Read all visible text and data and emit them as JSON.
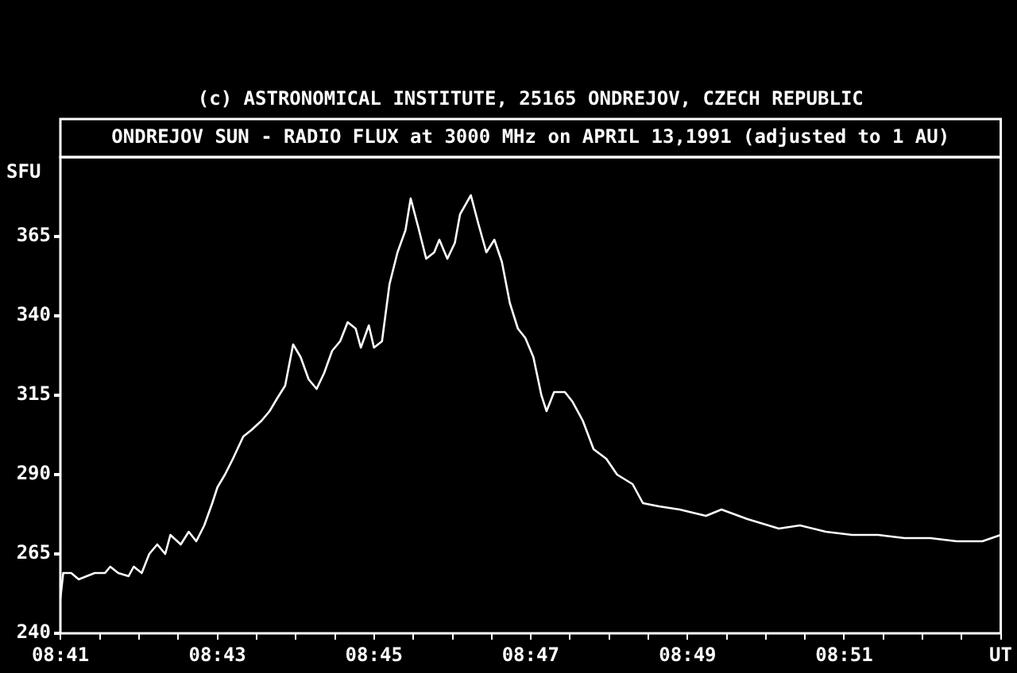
{
  "chart_data": {
    "type": "line",
    "title": "ONDREJOV SUN - RADIO FLUX at 3000 MHz on APRIL 13,1991 (adjusted to 1 AU)",
    "annotations": [
      "(c) ASTRONOMICAL INSTITUTE, 25165 ONDREJOV, CZECH REPUBLIC"
    ],
    "ylabel": "SFU",
    "x": [
      8.6833,
      8.6839,
      8.6856,
      8.6872,
      8.6889,
      8.6906,
      8.6928,
      8.6939,
      8.6956,
      8.6978,
      8.6989,
      8.7006,
      8.7022,
      8.7039,
      8.7056,
      8.7067,
      8.7089,
      8.7106,
      8.7122,
      8.7139,
      8.7156,
      8.7167,
      8.7183,
      8.72,
      8.7222,
      8.7239,
      8.7261,
      8.7278,
      8.7294,
      8.7311,
      8.7328,
      8.7344,
      8.7361,
      8.7378,
      8.7394,
      8.7411,
      8.7428,
      8.7444,
      8.7461,
      8.7472,
      8.7489,
      8.75,
      8.7517,
      8.7533,
      8.755,
      8.7567,
      8.7578,
      8.7594,
      8.7611,
      8.7628,
      8.7639,
      8.7656,
      8.7672,
      8.7683,
      8.7706,
      8.7722,
      8.7739,
      8.7756,
      8.7772,
      8.7789,
      8.7806,
      8.7822,
      8.7839,
      8.7856,
      8.7867,
      8.7883,
      8.7906,
      8.7922,
      8.7944,
      8.7967,
      8.7994,
      8.8017,
      8.805,
      8.8072,
      8.8106,
      8.815,
      8.8206,
      8.8239,
      8.8294,
      8.8361,
      8.8406,
      8.8461,
      8.8517,
      8.8572,
      8.8628,
      8.8683,
      8.8739,
      8.8794,
      8.8833
    ],
    "series": [
      {
        "color": "#ffffff",
        "values": [
          251,
          259,
          259,
          257,
          258,
          259,
          259,
          261,
          259,
          258,
          261,
          259,
          265,
          268,
          265,
          271,
          268,
          272,
          269,
          274,
          281,
          286,
          290,
          295,
          302,
          304,
          307,
          310,
          314,
          318,
          331,
          327,
          320,
          317,
          322,
          329,
          332,
          338,
          336,
          330,
          337,
          330,
          332,
          350,
          360,
          367,
          377,
          368,
          358,
          360,
          364,
          358,
          363,
          372,
          378,
          369,
          360,
          364,
          357,
          344,
          336,
          333,
          327,
          315,
          310,
          316,
          316,
          313,
          307,
          298,
          295,
          290,
          287,
          281,
          280,
          279,
          277,
          279,
          276,
          273,
          274,
          272,
          271,
          271,
          270,
          270,
          269,
          269,
          271
        ]
      }
    ],
    "xlim": [
      8.6833,
      8.8833
    ],
    "xticks": [
      {
        "value": 8.6833,
        "label": "08:41"
      },
      {
        "value": 8.6917,
        "label": null
      },
      {
        "value": 8.7,
        "label": null
      },
      {
        "value": 8.7083,
        "label": null
      },
      {
        "value": 8.7167,
        "label": "08:43"
      },
      {
        "value": 8.725,
        "label": null
      },
      {
        "value": 8.7333,
        "label": null
      },
      {
        "value": 8.7417,
        "label": null
      },
      {
        "value": 8.75,
        "label": "08:45"
      },
      {
        "value": 8.7583,
        "label": null
      },
      {
        "value": 8.7667,
        "label": null
      },
      {
        "value": 8.775,
        "label": null
      },
      {
        "value": 8.7833,
        "label": "08:47"
      },
      {
        "value": 8.7917,
        "label": null
      },
      {
        "value": 8.8,
        "label": null
      },
      {
        "value": 8.8083,
        "label": null
      },
      {
        "value": 8.8167,
        "label": "08:49"
      },
      {
        "value": 8.825,
        "label": null
      },
      {
        "value": 8.8333,
        "label": null
      },
      {
        "value": 8.8417,
        "label": null
      },
      {
        "value": 8.85,
        "label": "08:51"
      },
      {
        "value": 8.8583,
        "label": null
      },
      {
        "value": 8.8667,
        "label": null
      },
      {
        "value": 8.875,
        "label": null
      },
      {
        "value": 8.8833,
        "label": "UT"
      }
    ],
    "ylim": [
      240,
      390
    ],
    "yticks": [
      240,
      265,
      290,
      315,
      340,
      365
    ],
    "legend": false,
    "marker": "none",
    "line_style": "solid"
  }
}
